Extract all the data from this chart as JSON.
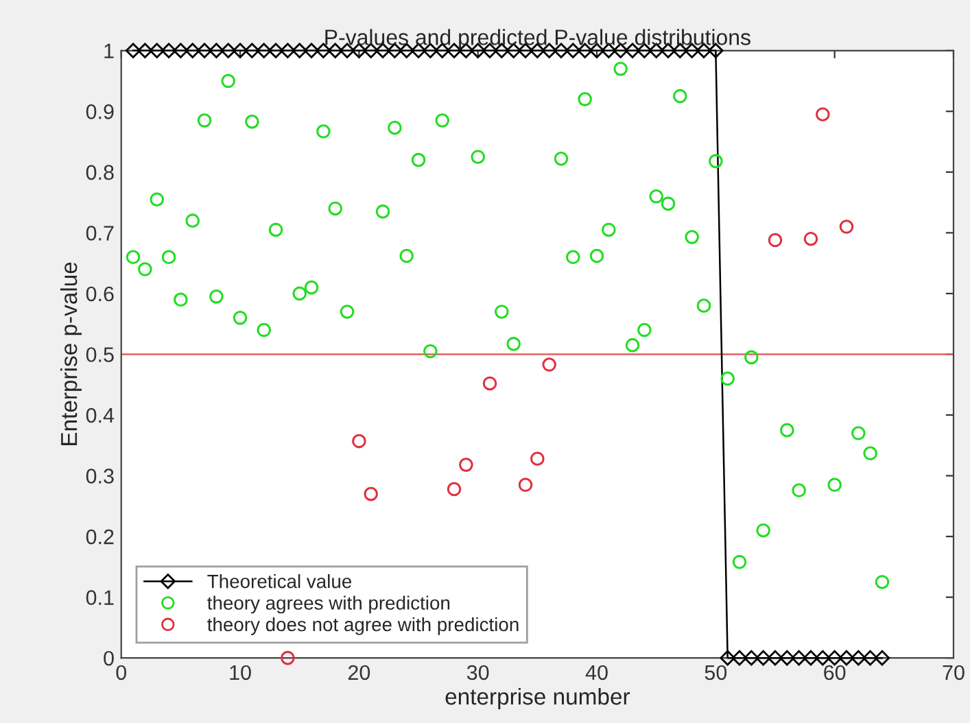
{
  "chart_data": {
    "type": "scatter",
    "title": "P-values and predicted P-value distributions",
    "xlabel": "enterprise number",
    "ylabel": "Enterprise p-value",
    "xlim": [
      0,
      70
    ],
    "xticks": [
      0,
      10,
      20,
      30,
      40,
      50,
      60,
      70
    ],
    "ylim": [
      0,
      1
    ],
    "yticks": [
      0,
      0.1,
      0.2,
      0.3,
      0.4,
      0.5,
      0.6,
      0.7,
      0.8,
      0.9,
      1
    ],
    "grid": false,
    "legend": "bottom left",
    "ref_lines": [
      {
        "axis": "y",
        "value": 0.5,
        "color": "#e06060",
        "line_style": "solid"
      }
    ],
    "series": [
      {
        "name": "Theoretical value",
        "type": "line",
        "marker": "diamond",
        "line_style": "solid",
        "color": "#000000",
        "x": [
          1,
          2,
          3,
          4,
          5,
          6,
          7,
          8,
          9,
          10,
          11,
          12,
          13,
          14,
          15,
          16,
          17,
          18,
          19,
          20,
          21,
          22,
          23,
          24,
          25,
          26,
          27,
          28,
          29,
          30,
          31,
          32,
          33,
          34,
          35,
          36,
          37,
          38,
          39,
          40,
          41,
          42,
          43,
          44,
          45,
          46,
          47,
          48,
          49,
          50,
          51,
          52,
          53,
          54,
          55,
          56,
          57,
          58,
          59,
          60,
          61,
          62,
          63,
          64
        ],
        "values": [
          1,
          1,
          1,
          1,
          1,
          1,
          1,
          1,
          1,
          1,
          1,
          1,
          1,
          1,
          1,
          1,
          1,
          1,
          1,
          1,
          1,
          1,
          1,
          1,
          1,
          1,
          1,
          1,
          1,
          1,
          1,
          1,
          1,
          1,
          1,
          1,
          1,
          1,
          1,
          1,
          1,
          1,
          1,
          1,
          1,
          1,
          1,
          1,
          1,
          1,
          0,
          0,
          0,
          0,
          0,
          0,
          0,
          0,
          0,
          0,
          0,
          0,
          0,
          0
        ]
      },
      {
        "name": "theory agrees with prediction",
        "marker": "circle",
        "color": "#22dd22",
        "x": [
          1,
          2,
          3,
          4,
          5,
          6,
          7,
          8,
          9,
          10,
          11,
          12,
          13,
          15,
          16,
          17,
          18,
          19,
          22,
          23,
          24,
          25,
          26,
          27,
          30,
          32,
          33,
          37,
          38,
          39,
          40,
          41,
          42,
          43,
          44,
          45,
          46,
          47,
          48,
          49,
          50,
          51,
          52,
          53,
          54,
          56,
          57,
          60,
          62,
          63,
          64
        ],
        "values": [
          0.66,
          0.64,
          0.755,
          0.66,
          0.59,
          0.72,
          0.885,
          0.595,
          0.95,
          0.56,
          0.883,
          0.54,
          0.705,
          0.6,
          0.61,
          0.867,
          0.74,
          0.57,
          0.735,
          0.873,
          0.662,
          0.82,
          0.505,
          0.885,
          0.825,
          0.57,
          0.517,
          0.822,
          0.66,
          0.92,
          0.662,
          0.705,
          0.97,
          0.515,
          0.54,
          0.76,
          0.748,
          0.925,
          0.693,
          0.58,
          0.818,
          0.46,
          0.158,
          0.495,
          0.21,
          0.375,
          0.276,
          0.285,
          0.37,
          0.337,
          0.125
        ]
      },
      {
        "name": "theory does not agree with prediction",
        "marker": "circle",
        "color": "#e03040",
        "x": [
          14,
          20,
          21,
          28,
          29,
          31,
          34,
          35,
          36,
          55,
          58,
          59,
          61
        ],
        "values": [
          0,
          0.357,
          0.27,
          0.278,
          0.318,
          0.452,
          0.285,
          0.328,
          0.483,
          0.688,
          0.69,
          0.895,
          0.71
        ]
      }
    ]
  }
}
